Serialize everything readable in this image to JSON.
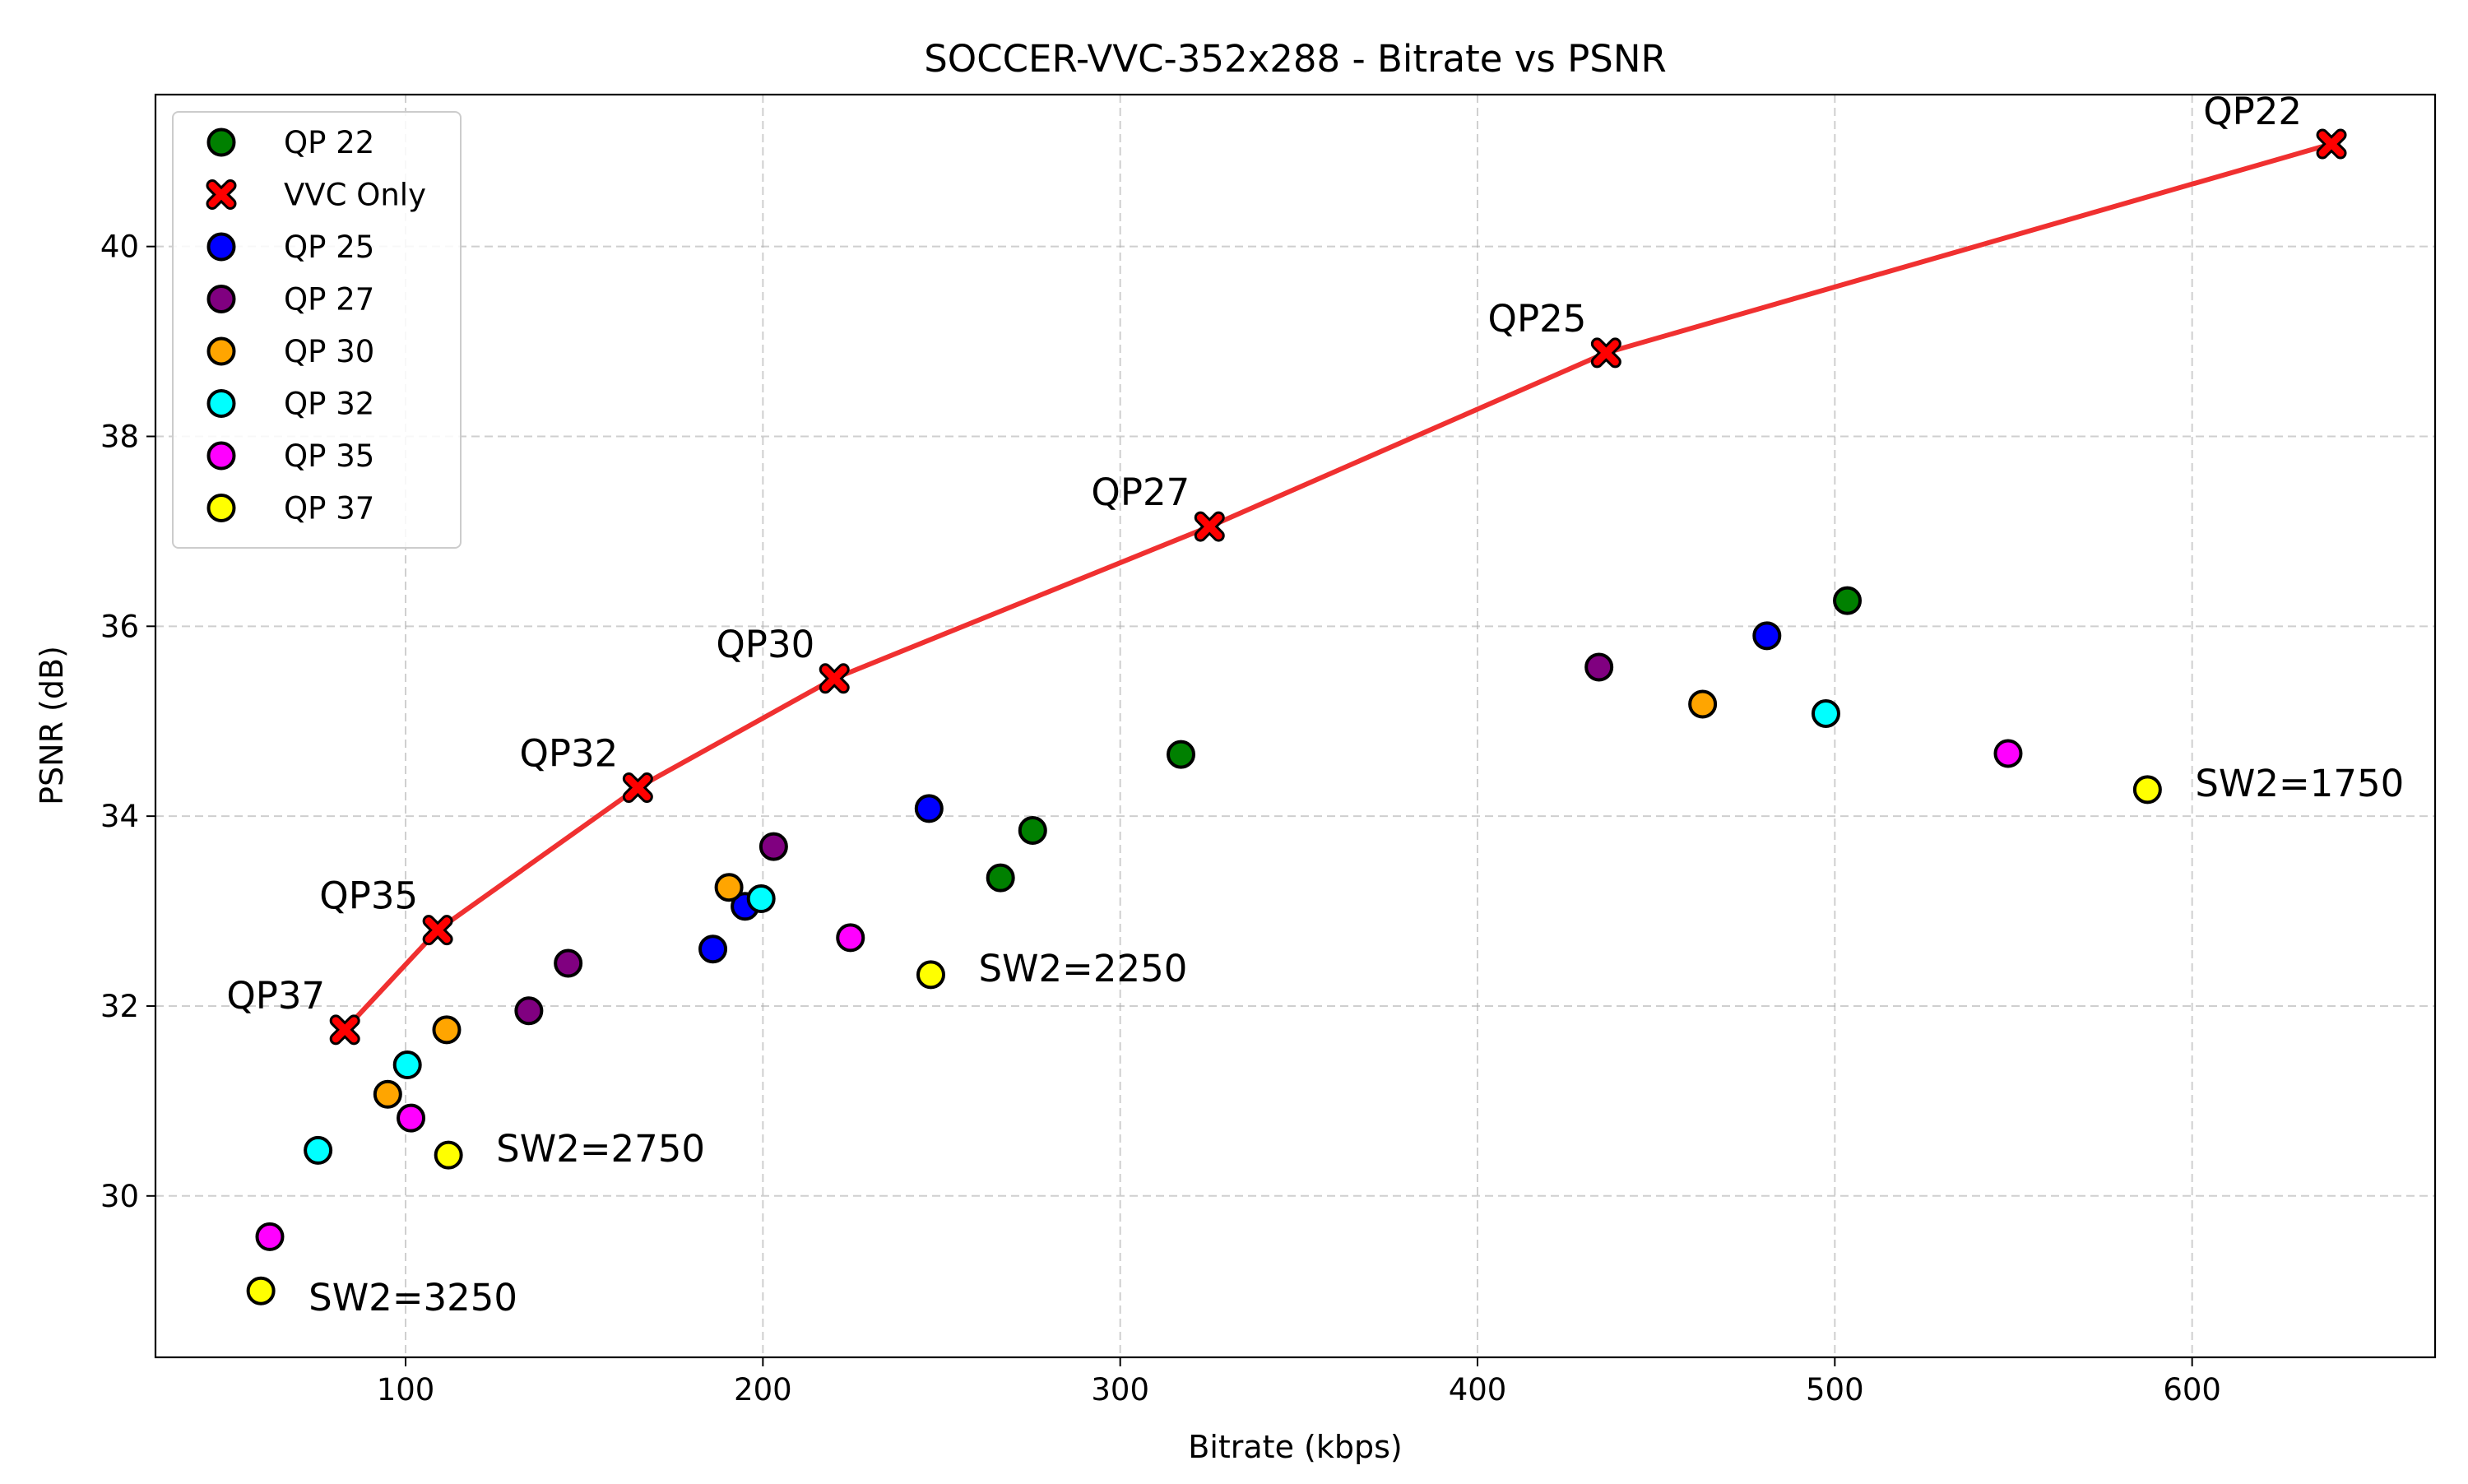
{
  "chart_data": {
    "type": "scatter",
    "title": "SOCCER-VVC-352x288 - Bitrate vs PSNR",
    "xlabel": "Bitrate (kbps)",
    "ylabel": "PSNR (dB)",
    "xlim": [
      30,
      668
    ],
    "ylim": [
      28.3,
      41.6
    ],
    "xticks": [
      100,
      200,
      300,
      400,
      500,
      600
    ],
    "yticks": [
      30,
      32,
      34,
      36,
      38,
      40
    ],
    "grid": true,
    "legend_position": "top-left",
    "series": [
      {
        "name": "QP 22",
        "color": "#008000",
        "marker": "circle",
        "points": [
          [
            266.5,
            33.35
          ],
          [
            275.5,
            33.85
          ],
          [
            317,
            34.65
          ],
          [
            503.5,
            36.27
          ]
        ]
      },
      {
        "name": "VVC Only",
        "color": "#ff0000",
        "marker": "x",
        "line": true,
        "line_color": "#f03030",
        "points": [
          [
            83,
            31.75
          ],
          [
            109,
            32.8
          ],
          [
            165,
            34.3
          ],
          [
            220,
            35.45
          ],
          [
            325,
            37.05
          ],
          [
            436,
            38.88
          ],
          [
            639,
            41.08
          ]
        ]
      },
      {
        "name": "QP 25",
        "color": "#0000ff",
        "marker": "circle",
        "points": [
          [
            186,
            32.6
          ],
          [
            195,
            33.05
          ],
          [
            246.5,
            34.08
          ],
          [
            481,
            35.9
          ]
        ]
      },
      {
        "name": "QP 27",
        "color": "#800080",
        "marker": "circle",
        "points": [
          [
            134.5,
            31.95
          ],
          [
            145.5,
            32.45
          ],
          [
            203,
            33.68
          ],
          [
            434,
            35.57
          ]
        ]
      },
      {
        "name": "QP 30",
        "color": "#ffa500",
        "marker": "circle",
        "points": [
          [
            95,
            31.07
          ],
          [
            111.5,
            31.75
          ],
          [
            190.5,
            33.25
          ],
          [
            463,
            35.18
          ]
        ]
      },
      {
        "name": "QP 32",
        "color": "#00ffff",
        "marker": "circle",
        "points": [
          [
            75.5,
            30.48
          ],
          [
            100.5,
            31.38
          ],
          [
            199.5,
            33.13
          ],
          [
            497.5,
            35.08
          ]
        ]
      },
      {
        "name": "QP 35",
        "color": "#ff00ff",
        "marker": "circle",
        "points": [
          [
            62,
            29.57
          ],
          [
            101.5,
            30.82
          ],
          [
            224.5,
            32.72
          ],
          [
            548.5,
            34.66
          ]
        ]
      },
      {
        "name": "QP 37",
        "color": "#ffff00",
        "marker": "circle",
        "points": [
          [
            59.5,
            29.0
          ],
          [
            112,
            30.43
          ],
          [
            247,
            32.33
          ],
          [
            587.5,
            34.28
          ]
        ]
      }
    ],
    "annotations": [
      {
        "text": "QP22",
        "x": 639,
        "y": 41.08,
        "dx": -36,
        "dy": -24,
        "anchor": "end"
      },
      {
        "text": "QP25",
        "x": 436,
        "y": 38.88,
        "dx": -24,
        "dy": -26,
        "anchor": "end"
      },
      {
        "text": "QP27",
        "x": 325,
        "y": 37.05,
        "dx": -24,
        "dy": -26,
        "anchor": "end"
      },
      {
        "text": "QP30",
        "x": 220,
        "y": 35.45,
        "dx": -24,
        "dy": -26,
        "anchor": "end"
      },
      {
        "text": "QP32",
        "x": 165,
        "y": 34.3,
        "dx": -24,
        "dy": -26,
        "anchor": "end"
      },
      {
        "text": "QP35",
        "x": 109,
        "y": 32.8,
        "dx": -24,
        "dy": -26,
        "anchor": "end"
      },
      {
        "text": "QP37",
        "x": 83,
        "y": 31.75,
        "dx": -24,
        "dy": -26,
        "anchor": "end"
      },
      {
        "text": "SW2=1750",
        "x": 587.5,
        "y": 34.28,
        "dx": 58,
        "dy": 8,
        "anchor": "start"
      },
      {
        "text": "SW2=2250",
        "x": 247,
        "y": 32.33,
        "dx": 58,
        "dy": 8,
        "anchor": "start"
      },
      {
        "text": "SW2=2750",
        "x": 112,
        "y": 30.43,
        "dx": 58,
        "dy": 8,
        "anchor": "start"
      },
      {
        "text": "SW2=3250",
        "x": 59.5,
        "y": 29.0,
        "dx": 58,
        "dy": 24,
        "anchor": "start"
      }
    ]
  }
}
